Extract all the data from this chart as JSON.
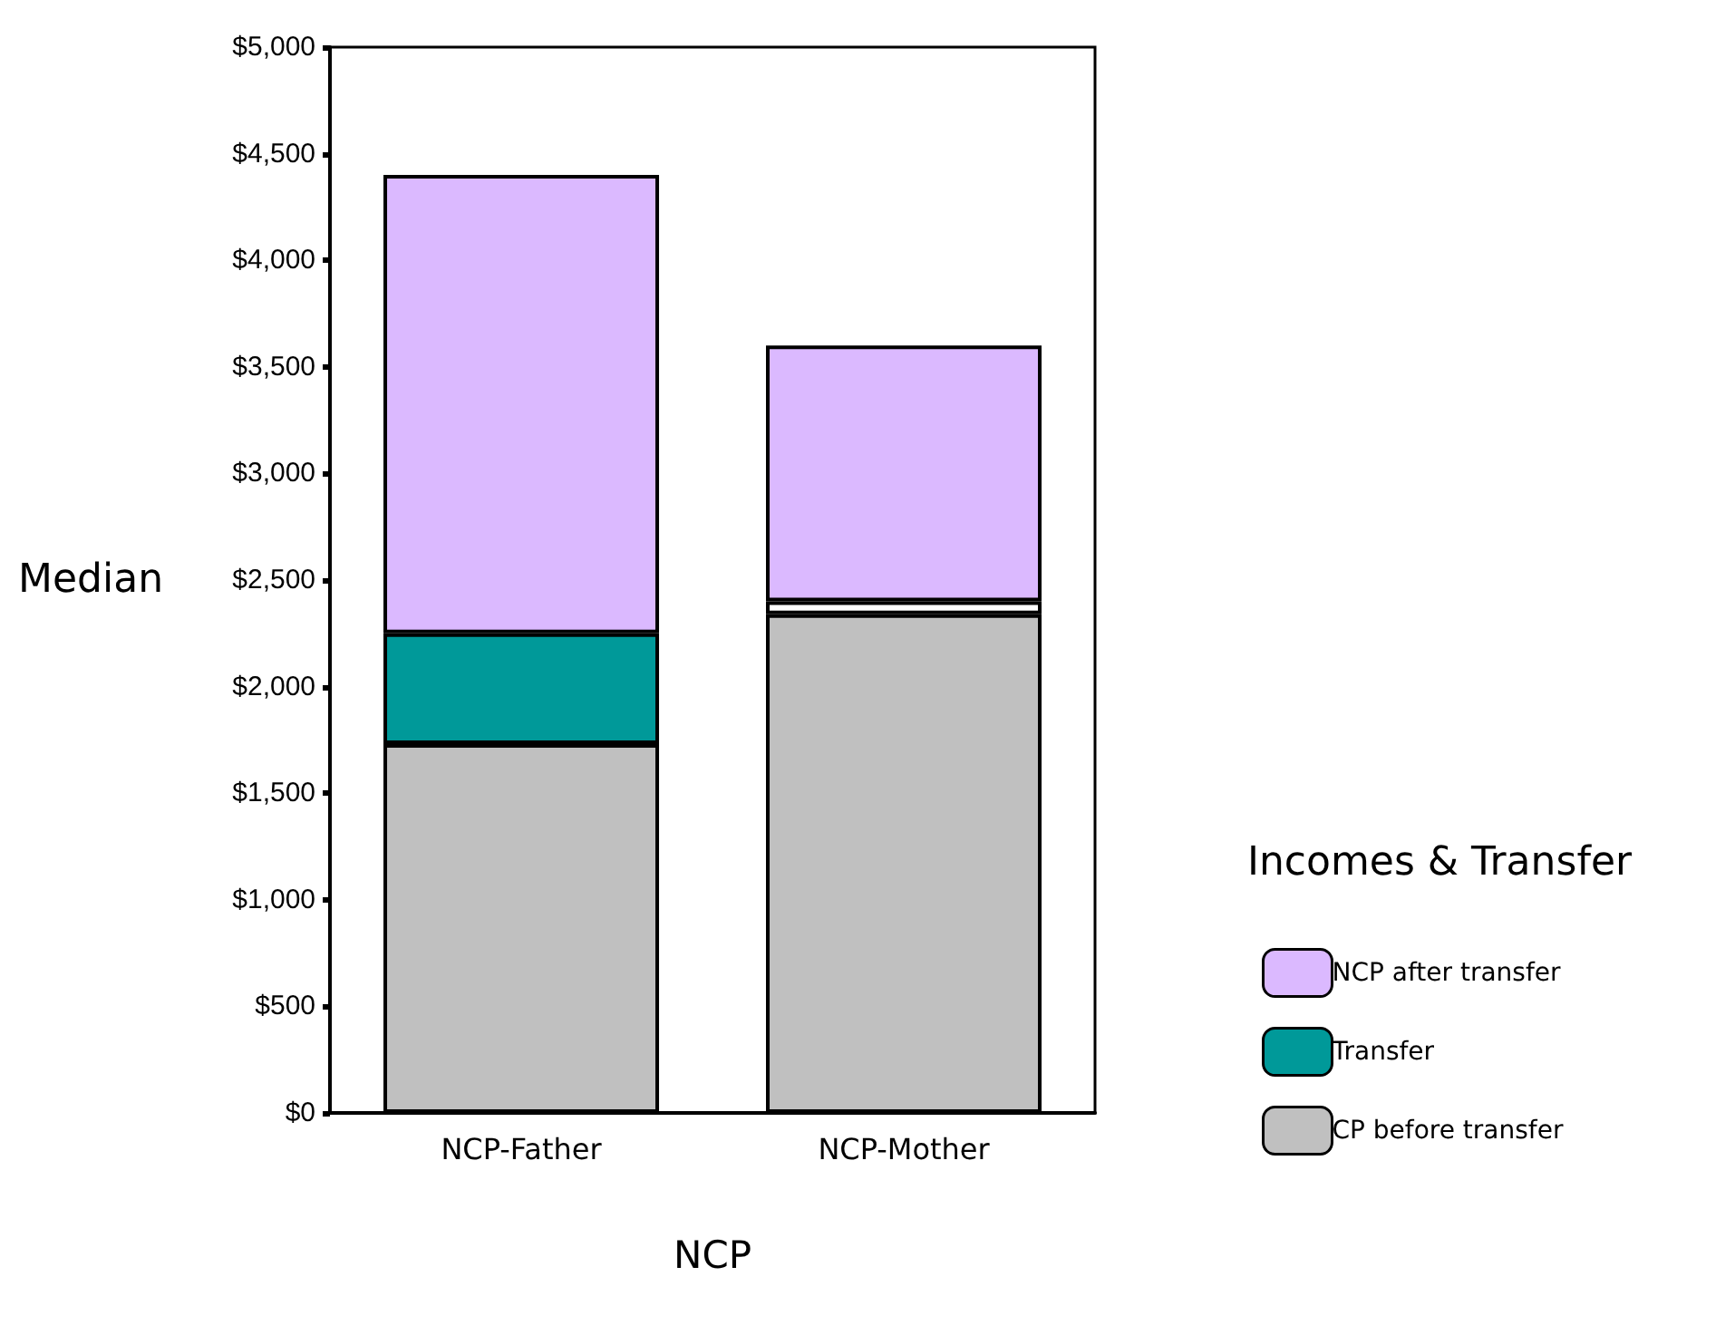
{
  "chart_data": {
    "type": "bar",
    "stacked": true,
    "xlabel": "NCP",
    "ylabel": "Median",
    "legend_title": "Incomes & Transfer",
    "legend": "right",
    "grid": false,
    "categories": [
      "NCP-Father",
      "NCP-Mother"
    ],
    "ylim": [
      0,
      5000
    ],
    "yticks": [
      {
        "value": 0,
        "label": "$0"
      },
      {
        "value": 500,
        "label": "$500"
      },
      {
        "value": 1000,
        "label": "$1,000"
      },
      {
        "value": 1500,
        "label": "$1,500"
      },
      {
        "value": 2000,
        "label": "$2,000"
      },
      {
        "value": 2500,
        "label": "$2,500"
      },
      {
        "value": 3000,
        "label": "$3,000"
      },
      {
        "value": 3500,
        "label": "$3,500"
      },
      {
        "value": 4000,
        "label": "$4,000"
      },
      {
        "value": 4500,
        "label": "$4,500"
      },
      {
        "value": 5000,
        "label": "$5,000"
      }
    ],
    "series": [
      {
        "name": "CP before transfer",
        "color": "#c0c0c0",
        "values": [
          1730,
          2340
        ]
      },
      {
        "name": "Transfer",
        "color": "#009999",
        "colors": [
          "#009999",
          "#ffffff"
        ],
        "values": [
          520,
          60
        ]
      },
      {
        "name": "NCP after transfer",
        "color": "#dbb9ff",
        "values": [
          2150,
          1200
        ]
      }
    ]
  }
}
